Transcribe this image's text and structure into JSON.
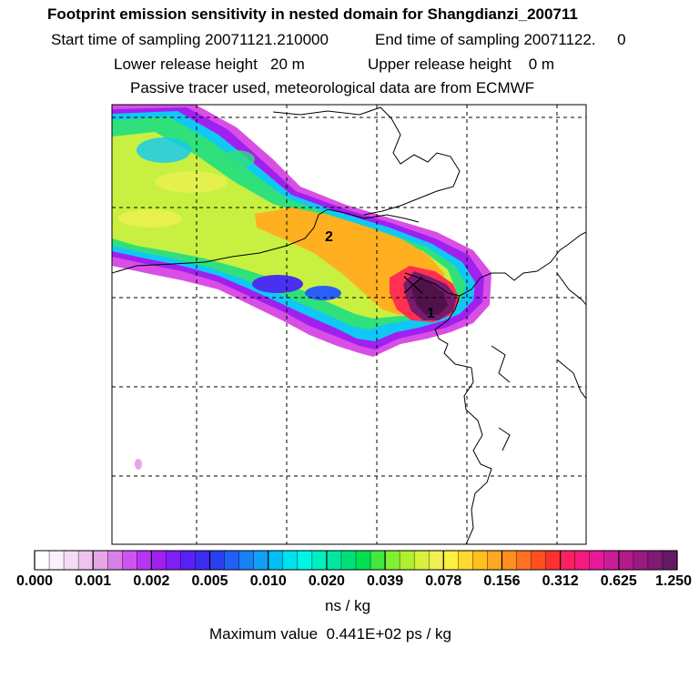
{
  "header": {
    "title": "Footprint emission sensitivity in nested domain for Shangdianzi_200711",
    "start_time": "Start time of sampling 20071121.210000",
    "end_time": "End time of sampling 20071122.     0",
    "lower_release": "Lower release height   20 m",
    "upper_release": "Upper release height    0 m",
    "tracer_info": "Passive tracer used, meteorological data are from ECMWF"
  },
  "map": {
    "markers": [
      {
        "label": "2"
      },
      {
        "label": "1"
      }
    ],
    "release_symbol": "x-cross-icon"
  },
  "colorbar": {
    "tick_labels": [
      "0.000",
      "0.001",
      "0.002",
      "0.005",
      "0.010",
      "0.020",
      "0.039",
      "0.078",
      "0.156",
      "0.312",
      "0.625",
      "1.250"
    ],
    "colors": [
      "#ffffff",
      "#fbeffb",
      "#f5dcf5",
      "#eec4ee",
      "#e6a6e6",
      "#d97fe6",
      "#cc55ee",
      "#b833f5",
      "#a020f0",
      "#7f1ff5",
      "#5a20f5",
      "#3a2df0",
      "#2a40f0",
      "#2060f5",
      "#1a80f5",
      "#10a0f5",
      "#00c0f5",
      "#00e0ee",
      "#00f5e6",
      "#00f0c0",
      "#00e8a0",
      "#00e07a",
      "#00e050",
      "#40e840",
      "#80f030",
      "#b0f030",
      "#d8f040",
      "#f0f050",
      "#fff040",
      "#ffd830",
      "#ffc020",
      "#ffa820",
      "#ff9020",
      "#ff7020",
      "#ff5020",
      "#ff3030",
      "#ff2060",
      "#f51a80",
      "#e61a99",
      "#cc1a99",
      "#b31a8c",
      "#991a80",
      "#801a73",
      "#661a66"
    ],
    "units": "ns / kg",
    "max_value": "Maximum value  0.441E+02 ps / kg"
  }
}
